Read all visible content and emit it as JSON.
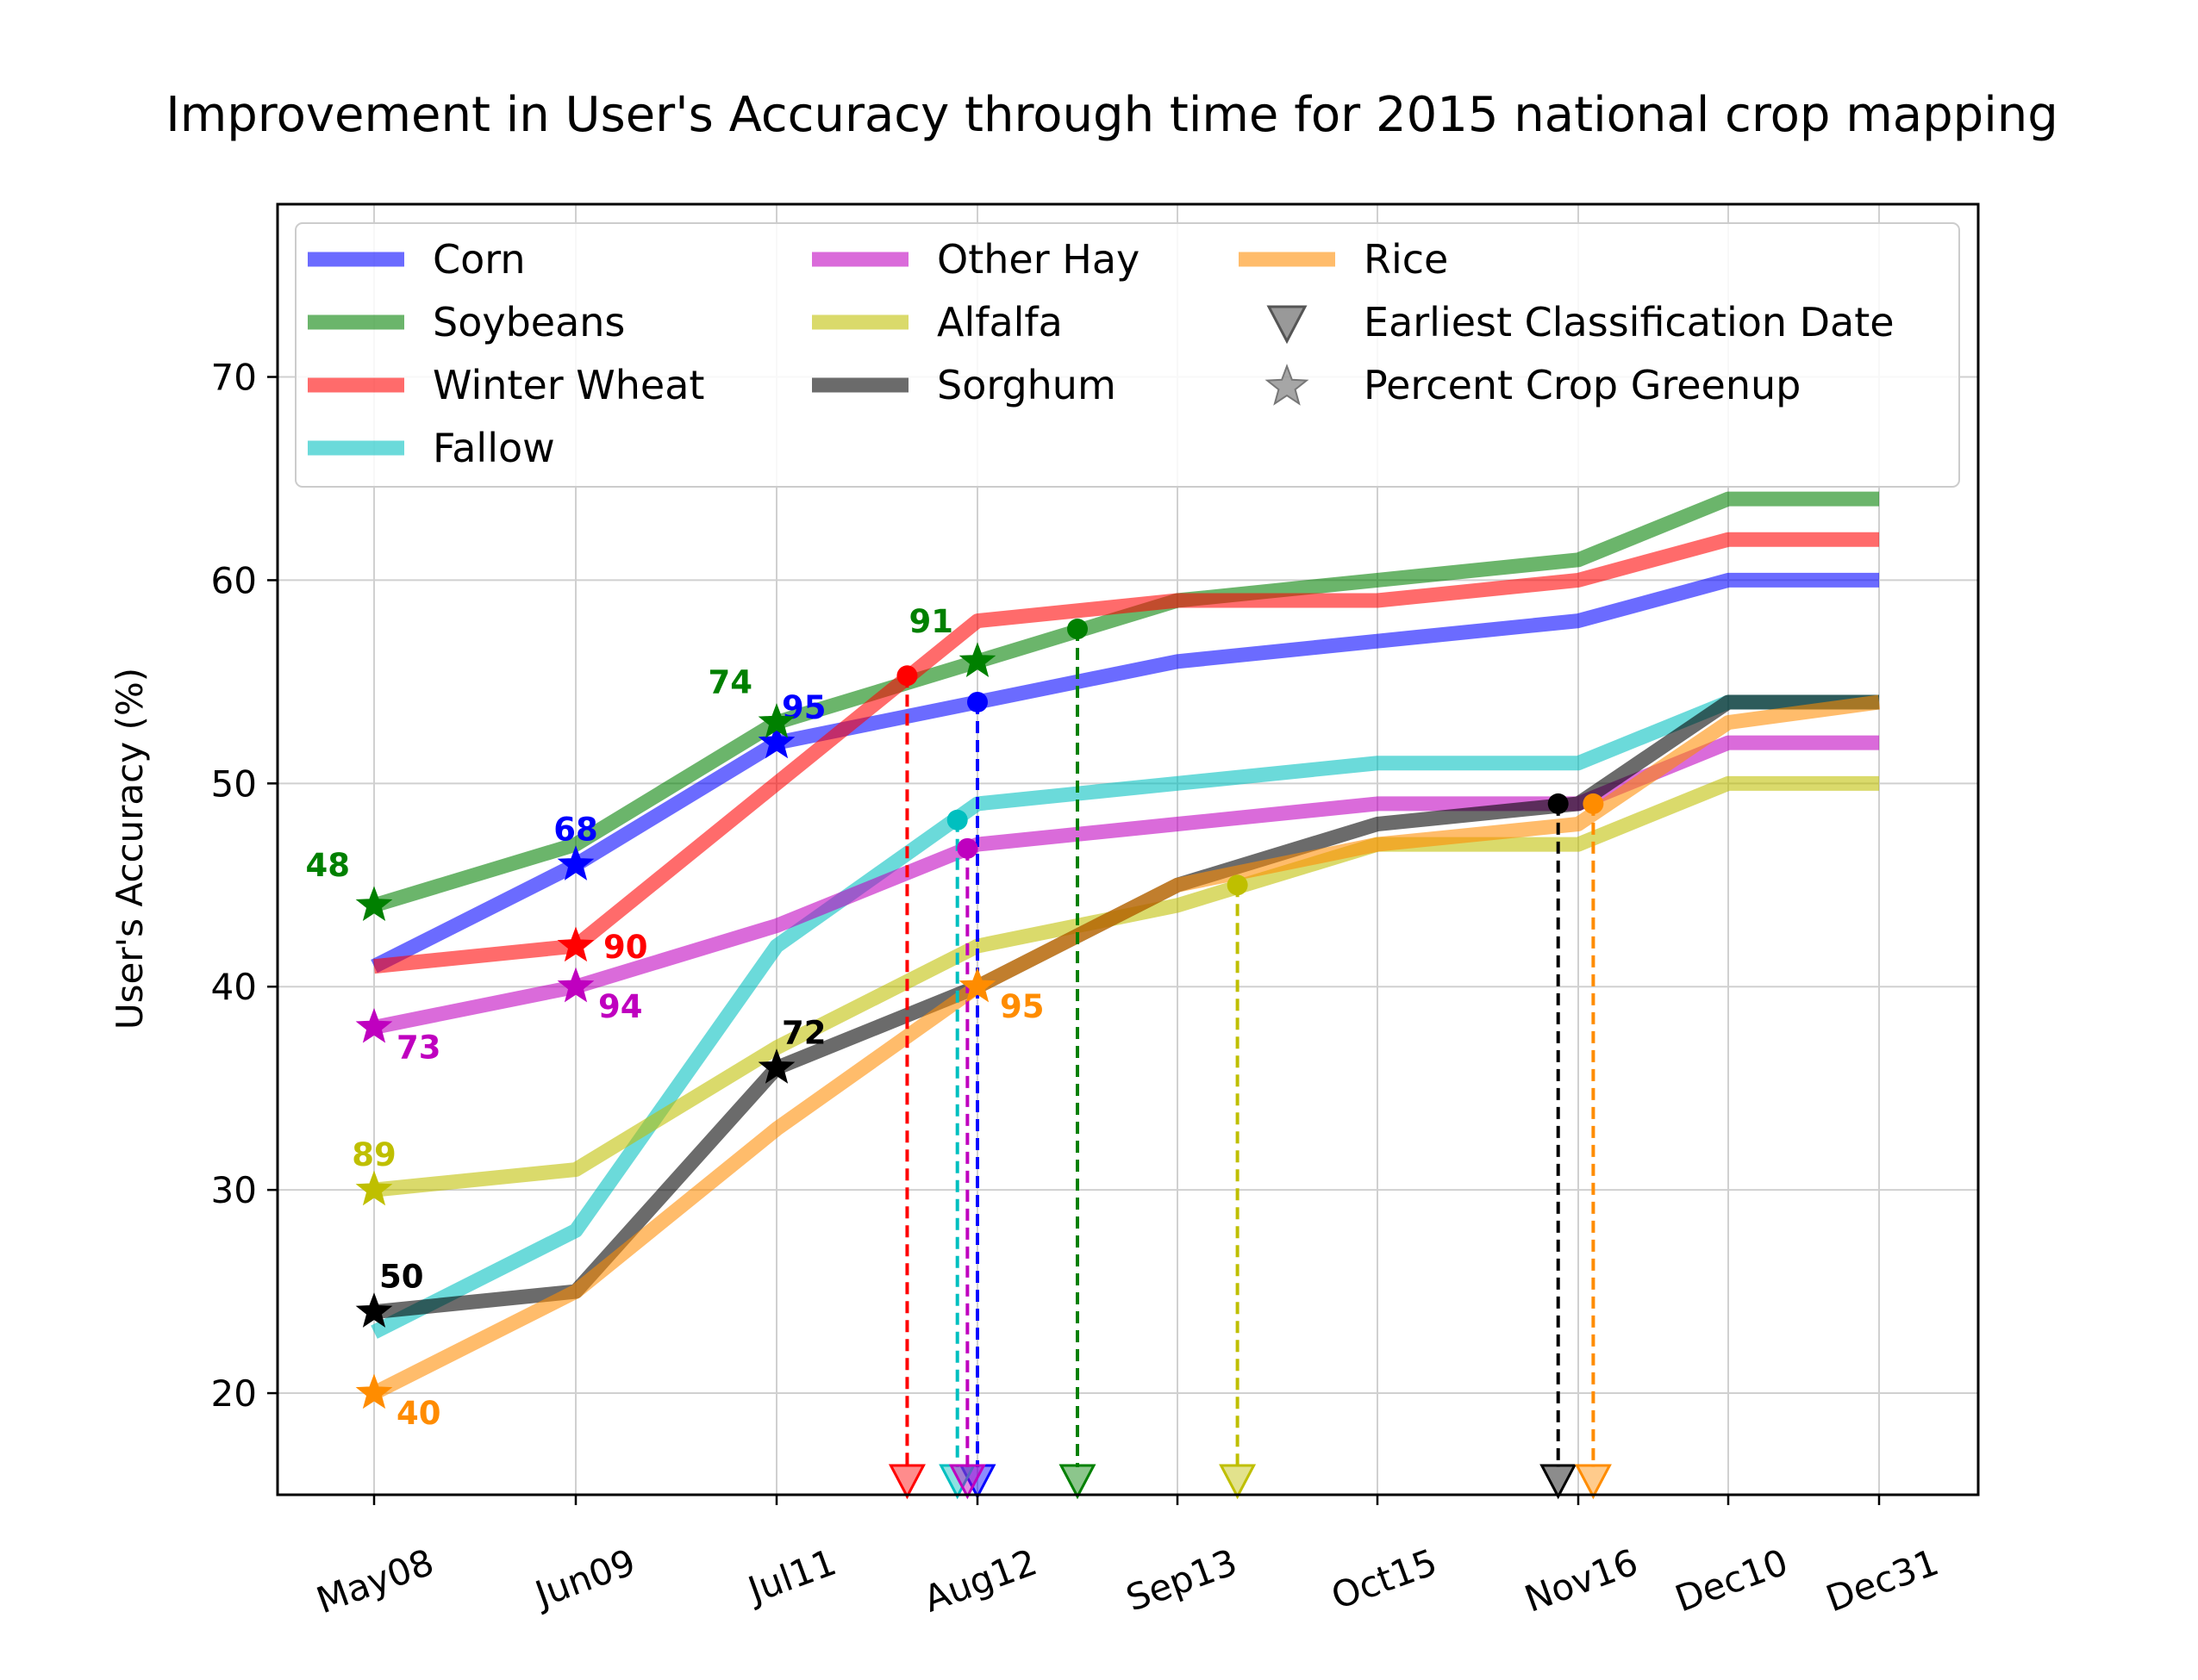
{
  "chart_data": {
    "type": "line",
    "title": "Improvement in User's Accuracy through time for 2015 national crop mapping",
    "xlabel": "",
    "ylabel": "User's Accuracy (%)",
    "categories": [
      "May08",
      "Jun09",
      "Jul11",
      "Aug12",
      "Sep13",
      "Oct15",
      "Nov16",
      "Dec10",
      "Dec31"
    ],
    "ylim": [
      15,
      78.5
    ],
    "yticks": [
      20,
      30,
      40,
      50,
      60,
      70
    ],
    "grid": true,
    "legend_position": "top",
    "series": [
      {
        "name": "Corn",
        "color": "#0000ff",
        "values": [
          41,
          46,
          52,
          54,
          56,
          57,
          58,
          60,
          60
        ],
        "greenup": {
          "x": 1,
          "y": 46,
          "label": "68",
          "label_pos": "above"
        },
        "greenup2": {
          "x": 2,
          "y": 52,
          "label": "95",
          "label_pos": "above-right"
        },
        "earliest": {
          "x": 3.0,
          "y": 54
        }
      },
      {
        "name": "Soybeans",
        "color": "#008000",
        "values": [
          44,
          47,
          53,
          56,
          59,
          60,
          61,
          64,
          64
        ],
        "greenup": {
          "x": 0,
          "y": 44,
          "label": "48",
          "label_pos": "above-left"
        },
        "greenup2": {
          "x": 2,
          "y": 53,
          "label": "74",
          "label_pos": "above-left"
        },
        "greenup3": {
          "x": 3,
          "y": 56,
          "label": "91",
          "label_pos": "above-left"
        },
        "earliest": {
          "x": 3.5,
          "y": 57.6
        }
      },
      {
        "name": "Winter Wheat",
        "color": "#ff0000",
        "values": [
          41,
          42,
          50,
          58,
          59,
          59,
          60,
          62,
          62
        ],
        "greenup": {
          "x": 1,
          "y": 42,
          "label": "90",
          "label_pos": "right"
        },
        "earliest": {
          "x": 2.65,
          "y": 55.3
        }
      },
      {
        "name": "Fallow",
        "color": "#00bfbf",
        "values": [
          23,
          28,
          42,
          49,
          50,
          51,
          51,
          54,
          54
        ],
        "earliest": {
          "x": 2.9,
          "y": 48.2
        }
      },
      {
        "name": "Other Hay",
        "color": "#bf00bf",
        "values": [
          38,
          40,
          43,
          47,
          48,
          49,
          49,
          52,
          52
        ],
        "greenup": {
          "x": 0,
          "y": 38,
          "label": "73",
          "label_pos": "below-right"
        },
        "greenup2": {
          "x": 1,
          "y": 40,
          "label": "94",
          "label_pos": "below-right"
        },
        "earliest": {
          "x": 2.95,
          "y": 46.8
        }
      },
      {
        "name": "Alfalfa",
        "color": "#bfbf00",
        "values": [
          30,
          31,
          37,
          42,
          44,
          47,
          47,
          50,
          50
        ],
        "greenup": {
          "x": 0,
          "y": 30,
          "label": "89",
          "label_pos": "above"
        },
        "earliest": {
          "x": 4.3,
          "y": 45
        }
      },
      {
        "name": "Sorghum",
        "color": "#000000",
        "values": [
          24,
          25,
          36,
          40,
          45,
          48,
          49,
          54,
          54
        ],
        "greenup": {
          "x": 0,
          "y": 24,
          "label": "50",
          "label_pos": "above-right"
        },
        "greenup2": {
          "x": 2,
          "y": 36,
          "label": "72",
          "label_pos": "above-right"
        },
        "earliest": {
          "x": 5.9,
          "y": 49
        }
      },
      {
        "name": "Rice",
        "color": "#ff8c00",
        "values": [
          20,
          25,
          33,
          40,
          45,
          47,
          48,
          53,
          54
        ],
        "greenup": {
          "x": 0,
          "y": 20,
          "label": "40",
          "label_pos": "below-right"
        },
        "greenup2": {
          "x": 3,
          "y": 40,
          "label": "95",
          "label_pos": "below-right"
        },
        "earliest": {
          "x": 6.1,
          "y": 49
        }
      }
    ],
    "legend_extra": [
      {
        "name": "Earliest Classification Date",
        "marker": "triangle-down"
      },
      {
        "name": "Percent Crop Greenup",
        "marker": "star"
      }
    ]
  }
}
